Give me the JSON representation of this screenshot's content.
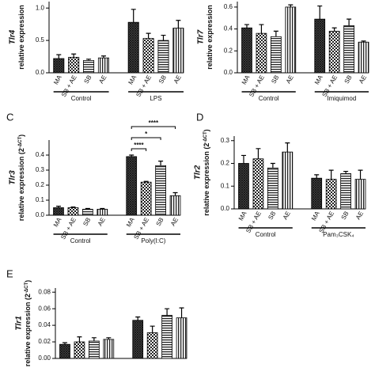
{
  "chart_data": [
    {
      "type": "bar",
      "gene": "Tlr4",
      "ylabel": [
        "relative expression"
      ],
      "ylim": [
        0,
        1.1
      ],
      "yticks": [
        {
          "value": 0,
          "label": "0.0"
        },
        0.5,
        {
          "value": 1,
          "label": "1.0"
        }
      ],
      "categories": [
        "MA",
        "SB + AE",
        "SB",
        "AE",
        "MA",
        "SB + AE",
        "SB",
        "AE"
      ],
      "groups": [
        "Control",
        "LPS"
      ],
      "values": [
        0.22,
        0.24,
        0.19,
        0.23,
        0.78,
        0.53,
        0.5,
        0.69
      ],
      "errors": [
        0.06,
        0.05,
        0.02,
        0.03,
        0.2,
        0.08,
        0.08,
        0.12
      ],
      "patterns": [
        "crosshatch",
        "checker",
        "hstripe",
        "vstripe"
      ]
    },
    {
      "type": "bar",
      "gene": "Tlr7",
      "ylabel": [
        "relative expression"
      ],
      "ylim": [
        0,
        0.65
      ],
      "yticks": [
        {
          "value": 0,
          "label": "0.0"
        },
        0.2,
        0.4,
        0.6
      ],
      "categories": [
        "MA",
        "SB + AE",
        "SB",
        "AE",
        "MA",
        "SB + AE",
        "SB",
        "AE"
      ],
      "groups": [
        "Control",
        "Imiquimod"
      ],
      "values": [
        0.41,
        0.36,
        0.33,
        0.6,
        0.49,
        0.38,
        0.43,
        0.28
      ],
      "errors": [
        0.03,
        0.08,
        0.05,
        0.02,
        0.12,
        0.03,
        0.06,
        0.01
      ],
      "patterns": [
        "crosshatch",
        "checker",
        "hstripe",
        "vstripe"
      ]
    },
    {
      "type": "bar",
      "panel": "C",
      "gene": "Tlr3",
      "ylabel": [
        "relative expression (2",
        "-ΔCT",
        ")"
      ],
      "ylim": [
        0,
        0.5
      ],
      "yticks": [
        {
          "value": 0,
          "label": "0.0"
        },
        0.1,
        0.2,
        0.3,
        0.4
      ],
      "categories": [
        "MA",
        "SB + AE",
        "SB",
        "AE",
        "MA",
        "SB + AE",
        "SB",
        "AE"
      ],
      "groups": [
        "Control",
        "Poly(I:C)"
      ],
      "values": [
        0.05,
        0.05,
        0.04,
        0.04,
        0.39,
        0.22,
        0.33,
        0.13
      ],
      "errors": [
        0.01,
        0.005,
        0.005,
        0.005,
        0.01,
        0.005,
        0.03,
        0.02
      ],
      "patterns": [
        "crosshatch",
        "checker",
        "hstripe",
        "vstripe"
      ],
      "annotations": [
        {
          "text": "****",
          "from": 4,
          "to": 7
        },
        {
          "text": "*",
          "from": 4,
          "to": 6
        },
        {
          "text": "****",
          "from": 4,
          "to": 5
        }
      ]
    },
    {
      "type": "bar",
      "panel": "D",
      "gene": "Tlr2",
      "ylabel": [
        "relative expression (2",
        "-ΔCT",
        ")"
      ],
      "ylim": [
        0,
        0.32
      ],
      "yticks": [
        {
          "value": 0,
          "label": "0.0"
        },
        0.1,
        0.2,
        0.3
      ],
      "categories": [
        "MA",
        "SB + AE",
        "SB",
        "AE",
        "MA",
        "SB + AE",
        "SB",
        "AE"
      ],
      "groups": [
        "Control",
        "Pam₃CSK₄"
      ],
      "values": [
        0.2,
        0.22,
        0.18,
        0.25,
        0.135,
        0.13,
        0.155,
        0.13
      ],
      "errors": [
        0.035,
        0.045,
        0.02,
        0.04,
        0.015,
        0.04,
        0.01,
        0.04
      ],
      "patterns": [
        "crosshatch",
        "checker",
        "hstripe",
        "vstripe"
      ]
    },
    {
      "type": "bar",
      "panel": "E",
      "gene": "Tlr1",
      "ylabel": [
        "relative expression (2",
        "-ΔCT",
        ")"
      ],
      "ylim": [
        0,
        0.085
      ],
      "yticks": [
        {
          "value": 0,
          "label": "0.00"
        },
        0.02,
        0.04,
        0.06,
        0.08
      ],
      "categories": [
        null,
        null,
        null,
        null,
        null,
        null,
        null,
        null
      ],
      "values": [
        0.017,
        0.02,
        0.021,
        0.023,
        0.046,
        0.031,
        0.052,
        0.049
      ],
      "errors": [
        0.002,
        0.006,
        0.004,
        0.002,
        0.004,
        0.008,
        0.008,
        0.012
      ],
      "patterns": [
        "crosshatch",
        "checker",
        "hstripe",
        "vstripe"
      ]
    }
  ]
}
